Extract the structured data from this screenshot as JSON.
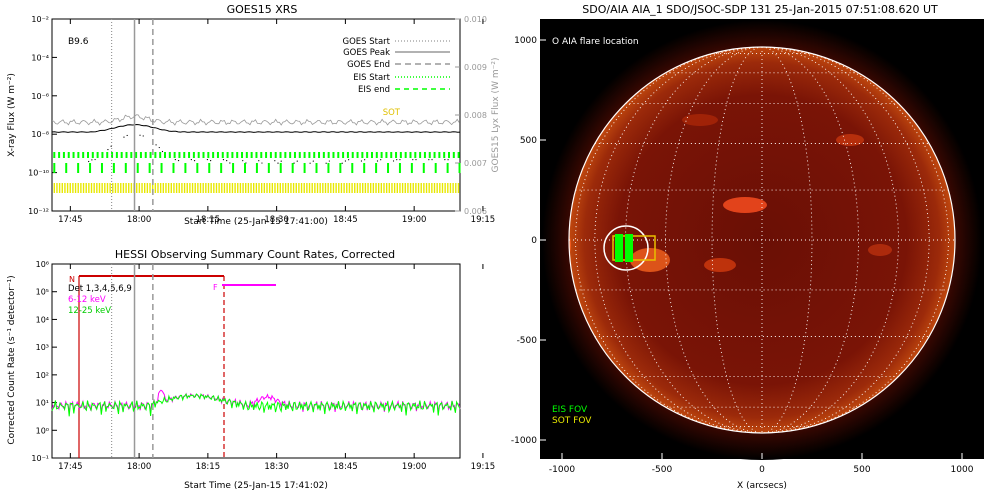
{
  "chart_data": [
    {
      "type": "line",
      "title": "GOES15 XRS",
      "xlabel": "Start Time (25-Jan-15 17:41:00)",
      "ylabel": "X-ray Flux (W m⁻²)",
      "ylabel_right": "GOES15 Lyx Flux (W m⁻²)",
      "class_label": "B9.6",
      "x_ticks": [
        "17:45",
        "18:00",
        "18:15",
        "18:30",
        "18:45",
        "19:00",
        "19:15"
      ],
      "y_ticks": [
        "10⁻¹²",
        "10⁻¹⁰",
        "10⁻⁸",
        "10⁻⁶",
        "10⁻⁴",
        "10⁻²"
      ],
      "y2_ticks": [
        "0.006",
        "0.007",
        "0.008",
        "0.009",
        "0.010"
      ],
      "ylim": [
        1e-12,
        0.01
      ],
      "y2lim": [
        0.006,
        0.01
      ],
      "xlim_minutes": [
        -4,
        85
      ],
      "legend": [
        "GOES Start",
        "GOES Peak",
        "GOES End",
        "EIS Start",
        "EIS end",
        "SOT"
      ],
      "goes_start_min": 9,
      "goes_peak_min": 14,
      "goes_end_min": 18
    },
    {
      "type": "line",
      "title": "HESSI Observing Summary Count Rates, Corrected",
      "xlabel": "Start Time (25-Jan-15 17:41:02)",
      "ylabel": "Corrected Count Rate (s⁻¹ detector⁻¹)",
      "det_label": "Det 1,3,4,5,6,9",
      "series": [
        {
          "name": "6-12 keV",
          "color": "#ff00ff"
        },
        {
          "name": "12-25 keV",
          "color": "#00ff00"
        }
      ],
      "flags": [
        "N",
        "F"
      ],
      "x_ticks": [
        "17:45",
        "18:00",
        "18:15",
        "18:30",
        "18:45",
        "19:00",
        "19:15"
      ],
      "y_ticks": [
        "10⁻¹",
        "10⁰",
        "10¹",
        "10²",
        "10³",
        "10⁴",
        "10⁵",
        "10⁶"
      ],
      "ylim": [
        0.1,
        1000000
      ]
    },
    {
      "type": "heatmap",
      "title": "SDO/AIA AIA_1 SDO/JSOC-SDP 131 25-Jan-2015 07:51:08.620 UT",
      "xlabel": "X (arcsecs)",
      "x_ticks": [
        "-1000",
        "-500",
        "0",
        "500",
        "1000"
      ],
      "y_ticks": [
        "1000",
        "500",
        "0",
        "-500",
        "-1000"
      ],
      "legend_top": "O AIA flare location",
      "legend_bottom": [
        "EIS FOV",
        "SOT FOV"
      ],
      "flare_location": {
        "x": -680,
        "y": -40
      },
      "eis_fov": {
        "x": -690,
        "y": -40
      },
      "sot_fov": {
        "x": -640,
        "y": -40
      }
    }
  ],
  "colors": {
    "eis": "#00ff00",
    "sot": "#e8e800",
    "rhessi_line": "#cc0000",
    "magenta": "#ff00ff",
    "grey": "#999999"
  }
}
